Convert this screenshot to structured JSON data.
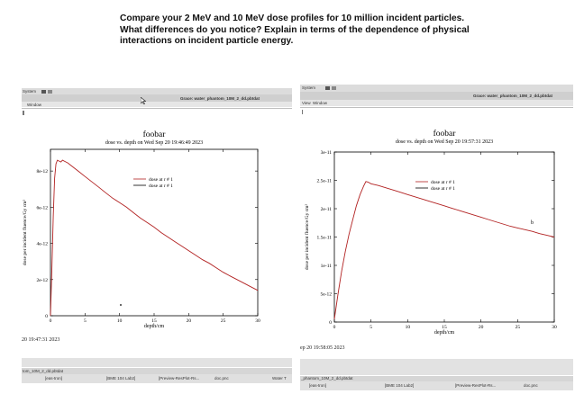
{
  "question": {
    "line1": "Compare your 2 MeV and 10 MeV dose profiles for 10 million incident particles.",
    "line2": "What differences do you notice? Explain in terms of the dependence of physical",
    "line3": "interactions on incident particle energy."
  },
  "left_window": {
    "menu_system": "System",
    "title": "Grace: water_phantom_10M_2_dd.pbtdat",
    "menu_window": "Window",
    "plot_title": "foobar",
    "plot_subtitle": "dose vs. depth on Wed Sep 20 19:46:49 2023",
    "timestamp": "20 19:47:31 2023",
    "taskbar_title": "tom_10M_2_dd.pbtdat",
    "taskbar_items": [
      "[eas-tron]",
      "[BME 104 Lab2]",
      "[Preview-ResPlot-Rs...",
      "doc.pnc",
      "Water T"
    ]
  },
  "right_window": {
    "menu_system": "System",
    "title": "Grace: water_phantom_10M_2_dd.pbtdat",
    "menu_view": "View",
    "menu_window": "Window",
    "plot_title": "foobar",
    "plot_subtitle": "dose vs. depth on Wed Sep 20 19:57:31 2023",
    "timestamp": "ep 20 19:58:05 2023",
    "taskbar_title": "_phantom_10M_2_dd.pbtdat",
    "taskbar_items": [
      "[eas-tron]",
      "[BME 104 Lab2]",
      "[Preview-ResPlot-Rs...",
      "doc.pnc"
    ]
  },
  "chart_data": [
    {
      "type": "line",
      "title": "foobar",
      "subtitle": "dose vs. depth on Wed Sep 20 19:46:49 2023",
      "xlabel": "depth/cm",
      "ylabel": "dose per incident fluence/Gy cm²",
      "xlim": [
        0,
        30
      ],
      "ylim": [
        0,
        9.2e-12
      ],
      "x_ticks": [
        0,
        5,
        10,
        15,
        20,
        25,
        30
      ],
      "x_tick_labels": [
        "0",
        "5",
        "10",
        "15",
        "20",
        "25",
        "30"
      ],
      "y_ticks": [
        0,
        2e-12,
        4e-12,
        6e-12,
        8e-12
      ],
      "y_tick_labels": [
        "0",
        "2e-12",
        "4e-12",
        "6e-12",
        "8e-12"
      ],
      "legend": [
        "dose at r # 1",
        "dose at r # 1"
      ],
      "legend_position": "top-right",
      "series_color": "#b22222",
      "series": [
        {
          "x": [
            0,
            0.2,
            0.4,
            0.6,
            0.8,
            1,
            1.25,
            1.5,
            1.75,
            2,
            2.5,
            3,
            4,
            5,
            6,
            7,
            8,
            9,
            10,
            11,
            12,
            13,
            14,
            15,
            16,
            17,
            18,
            19,
            20,
            21,
            22,
            23,
            24,
            25,
            26,
            27,
            28,
            29,
            30
          ],
          "values": [
            0,
            2.5e-12,
            5.5e-12,
            7.6e-12,
            8.4e-12,
            8.6e-12,
            8.55e-12,
            8.5e-12,
            8.6e-12,
            8.55e-12,
            8.45e-12,
            8.3e-12,
            8e-12,
            7.7e-12,
            7.4e-12,
            7.1e-12,
            6.8e-12,
            6.5e-12,
            6.25e-12,
            6e-12,
            5.7e-12,
            5.4e-12,
            5.15e-12,
            4.9e-12,
            4.6e-12,
            4.35e-12,
            4.1e-12,
            3.85e-12,
            3.6e-12,
            3.35e-12,
            3.1e-12,
            2.9e-12,
            2.65e-12,
            2.4e-12,
            2.2e-12,
            2e-12,
            1.8e-12,
            1.6e-12,
            1.4e-12
          ]
        }
      ]
    },
    {
      "type": "line",
      "title": "foobar",
      "subtitle": "dose vs. depth on Wed Sep 20 19:57:31 2023",
      "xlabel": "depth/cm",
      "ylabel": "dose per incident fluence/Gy cm²",
      "xlim": [
        0,
        30
      ],
      "ylim": [
        0,
        3e-11
      ],
      "x_ticks": [
        0,
        5,
        10,
        15,
        20,
        25,
        30
      ],
      "x_tick_labels": [
        "0",
        "5",
        "10",
        "15",
        "20",
        "25",
        "30"
      ],
      "y_ticks": [
        0,
        5e-12,
        1e-11,
        1.5e-11,
        2e-11,
        2.5e-11,
        3e-11
      ],
      "y_tick_labels": [
        "0",
        "5e-12",
        "1e-11",
        "1.5e-11",
        "2e-11",
        "2.5e-11",
        "3e-11"
      ],
      "legend": [
        "dose at r # 1",
        "dose at r # 1"
      ],
      "legend_position": "top-right",
      "series_color": "#b22222",
      "series": [
        {
          "x": [
            0,
            0.5,
            1,
            1.5,
            2,
            2.5,
            3,
            3.5,
            4,
            4.3,
            4.6,
            5,
            6,
            7,
            8,
            9,
            10,
            11,
            12,
            13,
            14,
            15,
            16,
            17,
            18,
            19,
            20,
            21,
            22,
            23,
            24,
            25,
            26,
            27,
            28,
            29,
            30
          ],
          "values": [
            5e-13,
            5e-12,
            9e-12,
            1.25e-11,
            1.55e-11,
            1.8e-11,
            2.05e-11,
            2.25e-11,
            2.4e-11,
            2.48e-11,
            2.47e-11,
            2.44e-11,
            2.41e-11,
            2.37e-11,
            2.33e-11,
            2.29e-11,
            2.25e-11,
            2.21e-11,
            2.17e-11,
            2.13e-11,
            2.09e-11,
            2.05e-11,
            2.01e-11,
            1.97e-11,
            1.93e-11,
            1.89e-11,
            1.85e-11,
            1.81e-11,
            1.77e-11,
            1.73e-11,
            1.69e-11,
            1.66e-11,
            1.63e-11,
            1.6e-11,
            1.56e-11,
            1.53e-11,
            1.5e-11
          ]
        }
      ]
    }
  ]
}
